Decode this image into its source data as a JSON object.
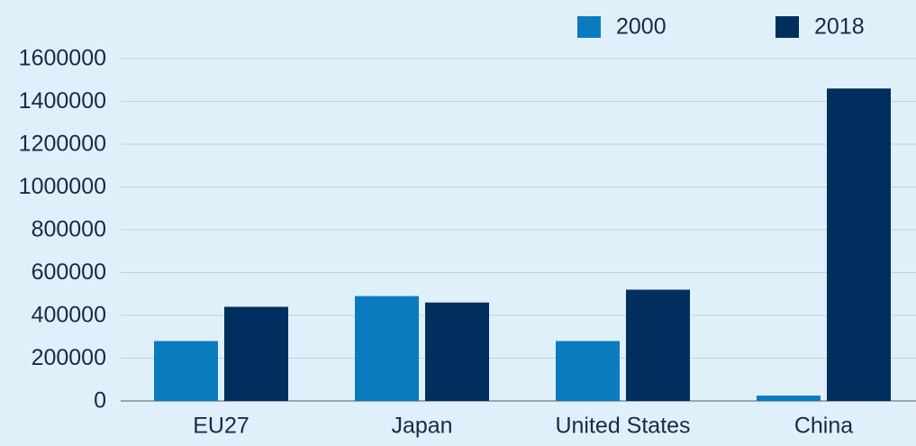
{
  "chart_data": {
    "type": "bar",
    "categories": [
      "EU27",
      "Japan",
      "United States",
      "China"
    ],
    "series": [
      {
        "name": "2000",
        "color": "#0a7bbf",
        "values": [
          280000,
          490000,
          280000,
          25000
        ]
      },
      {
        "name": "2018",
        "color": "#002f5f",
        "values": [
          440000,
          460000,
          520000,
          1460000
        ]
      }
    ],
    "ylim": [
      0,
      1600000
    ],
    "yticks": [
      0,
      200000,
      400000,
      600000,
      800000,
      1000000,
      1200000,
      1400000,
      1600000
    ],
    "grid": true,
    "legend": "top"
  }
}
